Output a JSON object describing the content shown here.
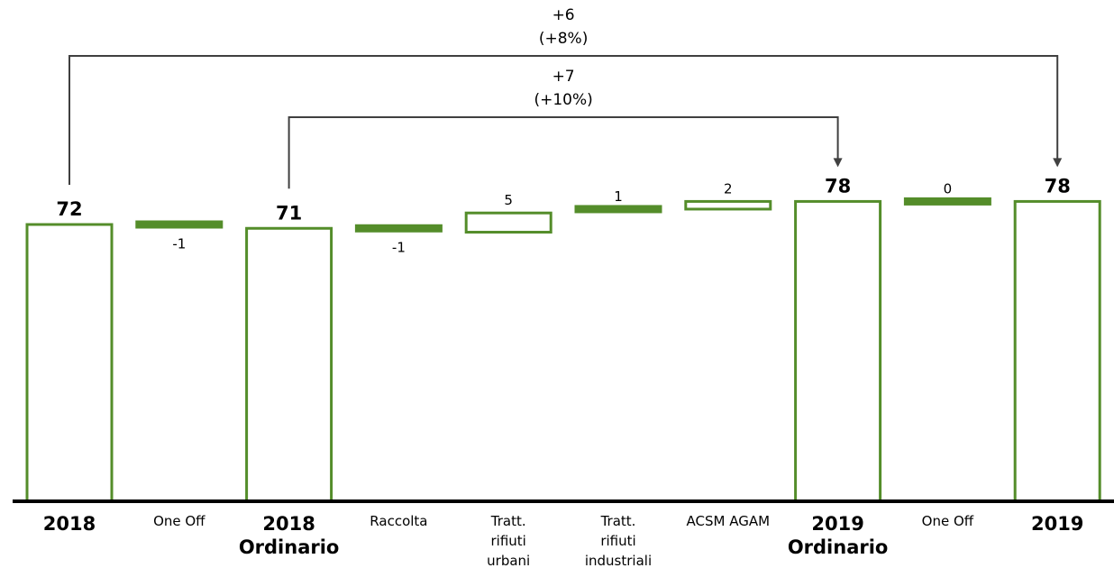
{
  "chart_data": {
    "type": "bar",
    "subtype": "waterfall",
    "categories": [
      {
        "label": [
          "2018"
        ],
        "bold": true
      },
      {
        "label": [
          "One Off"
        ],
        "bold": false
      },
      {
        "label": [
          "2018",
          "Ordinario"
        ],
        "bold": true
      },
      {
        "label": [
          "Raccolta"
        ],
        "bold": false
      },
      {
        "label": [
          "Tratt.",
          "rifiuti",
          "urbani"
        ],
        "bold": false
      },
      {
        "label": [
          "Tratt.",
          "rifiuti",
          "industriali"
        ],
        "bold": false
      },
      {
        "label": [
          "ACSM AGAM"
        ],
        "bold": false
      },
      {
        "label": [
          "2019",
          "Ordinario"
        ],
        "bold": true
      },
      {
        "label": [
          "One Off"
        ],
        "bold": false
      },
      {
        "label": [
          "2019"
        ],
        "bold": true
      }
    ],
    "values": [
      72,
      -1,
      71,
      -1,
      5,
      1,
      2,
      78,
      0,
      78
    ],
    "value_labels": [
      "72",
      "-1",
      "71",
      "-1",
      "5",
      "1",
      "2",
      "78",
      "0",
      "78"
    ],
    "bar_kind": [
      "total",
      "delta",
      "total",
      "delta",
      "delta",
      "delta",
      "delta",
      "total",
      "delta",
      "total"
    ],
    "ylim": [
      0,
      130
    ],
    "bar_color": "#548d2a",
    "annotations": [
      {
        "from_index": 0,
        "to_index": 9,
        "lines": [
          "+6",
          "(+8%)"
        ]
      },
      {
        "from_index": 2,
        "to_index": 7,
        "lines": [
          "+7",
          "(+10%)"
        ]
      }
    ],
    "title": "",
    "xlabel": "",
    "ylabel": "",
    "grid": false,
    "legend": "none"
  }
}
